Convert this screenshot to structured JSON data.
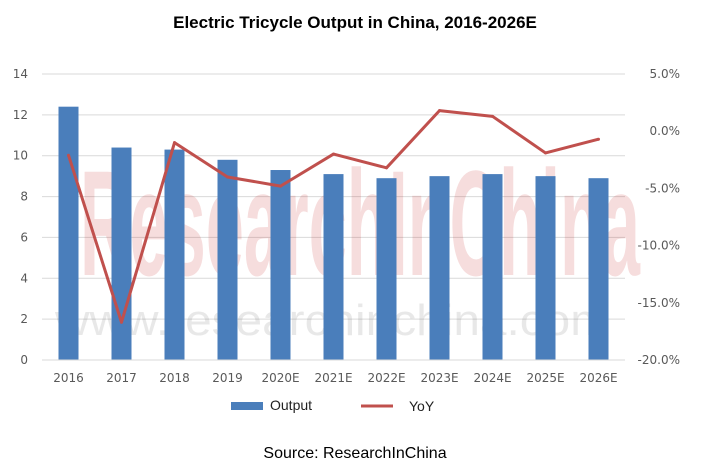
{
  "chart_data": {
    "type": "bar+line",
    "title": "Electric Tricycle Output in China, 2016-2026E",
    "categories": [
      "2016",
      "2017",
      "2018",
      "2019",
      "2020E",
      "2021E",
      "2022E",
      "2023E",
      "2024E",
      "2025E",
      "2026E"
    ],
    "series": [
      {
        "name": "Output",
        "type": "bar",
        "axis": "left",
        "color": "#4a7ebb",
        "values": [
          12.4,
          10.4,
          10.3,
          9.8,
          9.3,
          9.1,
          8.9,
          9.0,
          9.1,
          9.0,
          8.9
        ]
      },
      {
        "name": "YoY",
        "type": "line",
        "axis": "right",
        "color": "#c0504d",
        "values": [
          -2.1,
          -16.7,
          -1.0,
          -4.0,
          -4.8,
          -2.0,
          -3.2,
          1.8,
          1.3,
          -1.9,
          -0.7
        ]
      }
    ],
    "left_axis": {
      "ylim": [
        0,
        14
      ],
      "ticks": [
        "0",
        "2",
        "4",
        "6",
        "8",
        "10",
        "12",
        "14"
      ]
    },
    "right_axis": {
      "ylim": [
        -20,
        5
      ],
      "ticks": [
        "-20.0%",
        "-15.0%",
        "-10.0%",
        "-5.0%",
        "0.0%",
        "5.0%"
      ]
    },
    "grid": true,
    "legend_position": "bottom",
    "source": "Source: ResearchInChina",
    "watermark": {
      "big": "ResearchInChina",
      "url": "www.researchinchina.com"
    }
  }
}
